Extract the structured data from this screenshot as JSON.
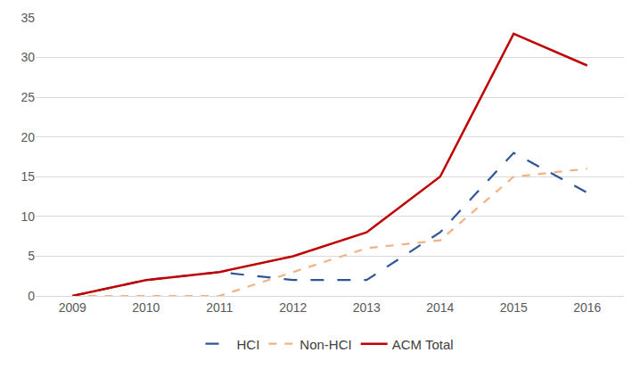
{
  "chart_data": {
    "type": "line",
    "categories": [
      "2009",
      "2010",
      "2011",
      "2012",
      "2013",
      "2014",
      "2015",
      "2016"
    ],
    "series": [
      {
        "name": "HCI",
        "color": "#2f5597",
        "line_style": "longdash",
        "values": [
          0,
          2,
          3,
          2,
          2,
          8,
          18,
          13
        ]
      },
      {
        "name": "Non-HCI",
        "color": "#f4b183",
        "line_style": "dash",
        "values": [
          0,
          0,
          0,
          3,
          6,
          7,
          15,
          16
        ]
      },
      {
        "name": "ACM Total",
        "color": "#c00000",
        "line_style": "solid",
        "values": [
          0,
          2,
          3,
          5,
          8,
          15,
          33,
          29
        ]
      }
    ],
    "ylim": [
      0,
      35
    ],
    "yticks": [
      0,
      5,
      10,
      15,
      20,
      25,
      30,
      35
    ],
    "grid": true,
    "legend": "bottom"
  }
}
